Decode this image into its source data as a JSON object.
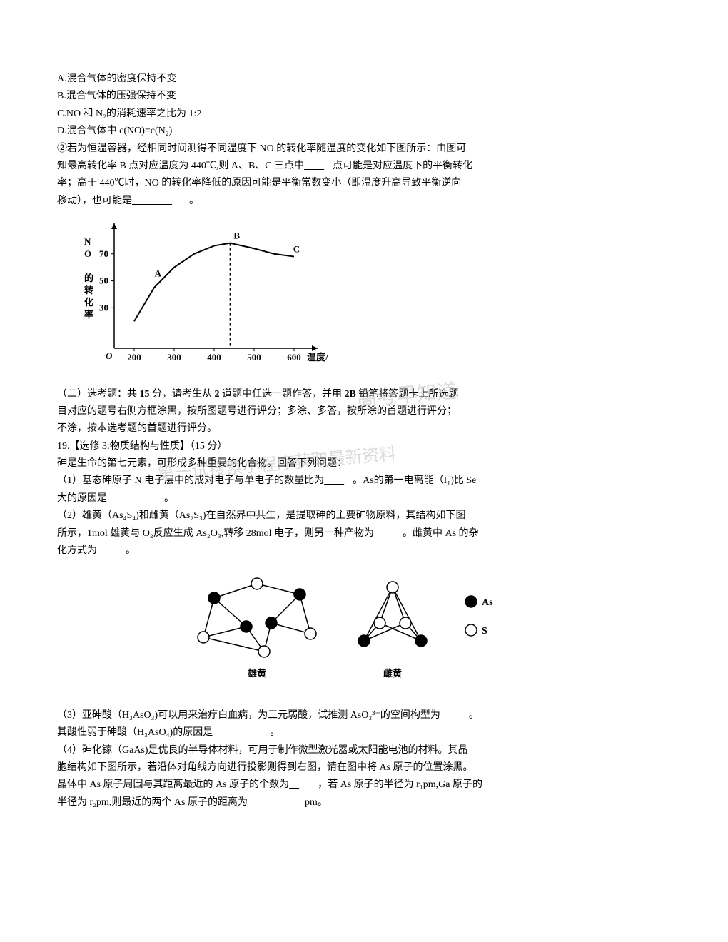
{
  "options": {
    "A": "A.混合气体的密度保持不变",
    "B": "B.混合气体的压强保持不变",
    "C": "C.NO 和 N₂的消耗速率之比为 1:2",
    "D": "D.混合气体中 c(NO)=c(N₂)"
  },
  "paragraph2": {
    "line1": "②若为恒温容器，经相同时间测得不同温度下 NO 的转化率随温度的变化如下图所示：由图可",
    "line2_a": "知最高转化率 B 点对应温度为 440℃,则 A、B、C 三点中",
    "line2_b": "点可能是对应温度下的平衡转化",
    "line3": "率；高于 440℃时，NO 的转化率降低的原因可能是平衡常数变小（即温度升高导致平衡逆向",
    "line4_a": "移动），也可能是",
    "line4_b": "。"
  },
  "chart": {
    "type": "line",
    "x_label": "温度/℃",
    "y_label": "NO 的转化率",
    "x_ticks": [
      200,
      300,
      400,
      500,
      600
    ],
    "y_ticks": [
      30,
      50,
      70
    ],
    "points": {
      "A": {
        "x": 260,
        "y": 50,
        "label": "A"
      },
      "B": {
        "x": 440,
        "y": 78,
        "label": "B"
      },
      "C": {
        "x": 580,
        "y": 68,
        "label": "C"
      }
    },
    "dash_x": 440,
    "curve_data": [
      {
        "x": 200,
        "y": 20
      },
      {
        "x": 250,
        "y": 45
      },
      {
        "x": 300,
        "y": 60
      },
      {
        "x": 350,
        "y": 70
      },
      {
        "x": 400,
        "y": 76
      },
      {
        "x": 440,
        "y": 78
      },
      {
        "x": 500,
        "y": 74
      },
      {
        "x": 550,
        "y": 70
      },
      {
        "x": 600,
        "y": 68
      }
    ],
    "axis_color": "#000000",
    "line_color": "#000000",
    "line_width": 2,
    "font_size": 13
  },
  "section2": {
    "header_a": "（二）选考题：共 ",
    "header_bold1": "15",
    "header_b": " 分，请考生从 ",
    "header_bold2": "2",
    "header_c": " 道题中任选一题作答，并用 ",
    "header_bold3": "2B",
    "header_d": " 铅笔将答题卡上所选题",
    "line2": "目对应的题号右侧方框涂黑，按所图题号进行评分；多涂、多答，按所涂的首题进行评分；",
    "line3": "不涂，按本选考题的首题进行评分。"
  },
  "q19": {
    "title": "19.【选修 3:物质结构与性质】（15 分）",
    "intro": "砷是生命的第七元素，可形成多种重要的化合物。回答下列问题：",
    "p1_a": "（1）基态砷原子 N 电子层中的成对电子与单电子的数量比为",
    "p1_b": "。As的第一电离能（I₁)比 Se",
    "p1_c": "大的原因是",
    "p1_d": "。",
    "p2_a": "（2）雄黄（As₄S₄)和雌黄（As₂S₃)在自然界中共生，是提取砷的主要矿物原料，其结构如下图",
    "p2_b": "所示，1mol 雄黄与 O₂反应生成 As₂O₃,转移 28mol 电子，则另一种产物为",
    "p2_c": "。雌黄中 As 的杂",
    "p2_d": "化方式为",
    "p2_e": "。",
    "p3_a": "（3）亚砷酸（H₃AsO₃)可以用来治疗白血病，为三元弱酸，试推测 AsO₃³⁻的空间构型为",
    "p3_b": "。",
    "p3_c": "其酸性弱于砷酸（H₃AsO₄)的原因是",
    "p3_d": "。",
    "p4_a": "（4）砷化镓（GaAs)是优良的半导体材料，可用于制作微型激光器或太阳能电池的材料。其晶",
    "p4_b": "胞结构如下图所示，若沿体对角线方向进行投影则得到右图，请在图中将 As 原子的位置涂黑。",
    "p4_c_a": "晶体中 As 原子周围与其距离最近的 As 原子的个数为",
    "p4_c_b": "，若 As 原子的半径为 r₁pm,Ga 原子的",
    "p4_d_a": "半径为 r₂pm,则最近的两个 As 原子的距离为",
    "p4_d_b": "pm。"
  },
  "structures": {
    "label1": "雄黄",
    "label2": "雌黄",
    "legend_as": "As",
    "legend_s": "S",
    "as_color": "#000000",
    "s_color": "#ffffff",
    "s_stroke": "#000000",
    "node_radius": 8,
    "line_width": 1.5
  },
  "watermarks": {
    "w1": "高考早知道",
    "w2": "第一试搜索小程序获取最新资料",
    "w3": "第"
  }
}
